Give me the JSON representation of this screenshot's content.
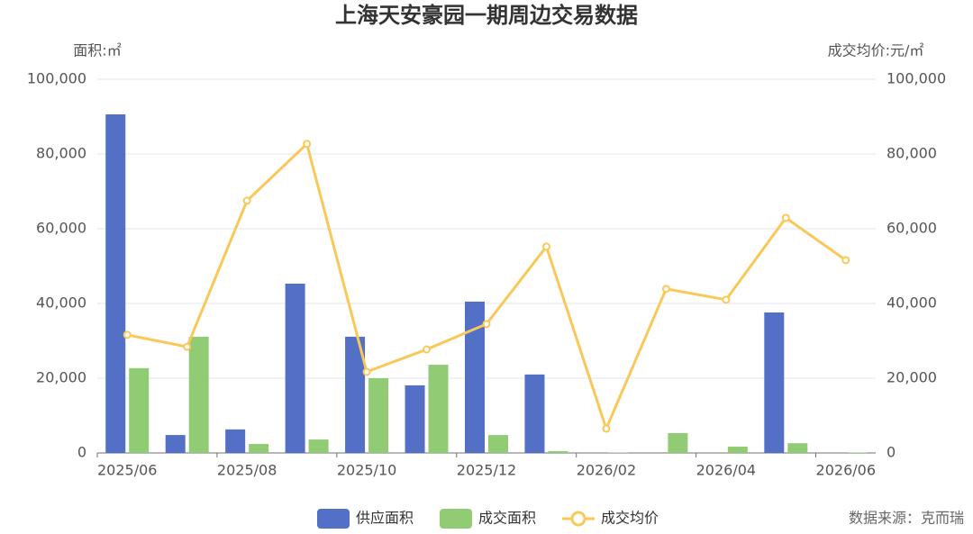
{
  "chart_data": {
    "type": "bar-line",
    "title": "上海天安豪园一期周边交易数据",
    "y_label": "面积:㎡",
    "y2_label": "成交均价:元/㎡",
    "source": "数据来源：克而瑞",
    "categories": [
      "2025/06",
      null,
      "2025/08",
      null,
      "2025/10",
      null,
      "2025/12",
      null,
      "2026/02",
      null,
      "2026/04",
      null,
      "2026/06"
    ],
    "series": [
      {
        "name": "供应面积",
        "type": "bar",
        "color": "#5470c6",
        "values": [
          90600,
          4800,
          6300,
          45300,
          31100,
          18100,
          40500,
          21000,
          0,
          0,
          0,
          37600,
          0
        ]
      },
      {
        "name": "成交面积",
        "type": "bar",
        "color": "#91cc75",
        "values": [
          22700,
          31100,
          2400,
          3600,
          20000,
          23600,
          4800,
          500,
          100,
          5300,
          1700,
          2600,
          100
        ]
      },
      {
        "name": "成交均价",
        "type": "line",
        "axis": "y2",
        "color": "#fac858",
        "values": [
          31600,
          28400,
          67500,
          82700,
          21700,
          27700,
          34500,
          55200,
          6500,
          43900,
          41000,
          62900,
          51600
        ]
      }
    ],
    "ylim": [
      0,
      100000
    ],
    "yticks": [
      0,
      {
        "value": 20000,
        "label": "20,000"
      },
      {
        "value": 40000,
        "label": "40,000"
      },
      {
        "value": 60000,
        "label": "60,000"
      },
      {
        "value": 80000,
        "label": "80,000"
      },
      {
        "value": 100000,
        "label": "100,000"
      }
    ],
    "y2lim": [
      0,
      100000
    ],
    "y2ticks": [
      0,
      {
        "value": 20000,
        "label": "20,000"
      },
      {
        "value": 40000,
        "label": "40,000"
      },
      {
        "value": 60000,
        "label": "60,000"
      },
      {
        "value": 80000,
        "label": "80,000"
      },
      {
        "value": 100000,
        "label": "100,000"
      }
    ],
    "grid": true
  }
}
